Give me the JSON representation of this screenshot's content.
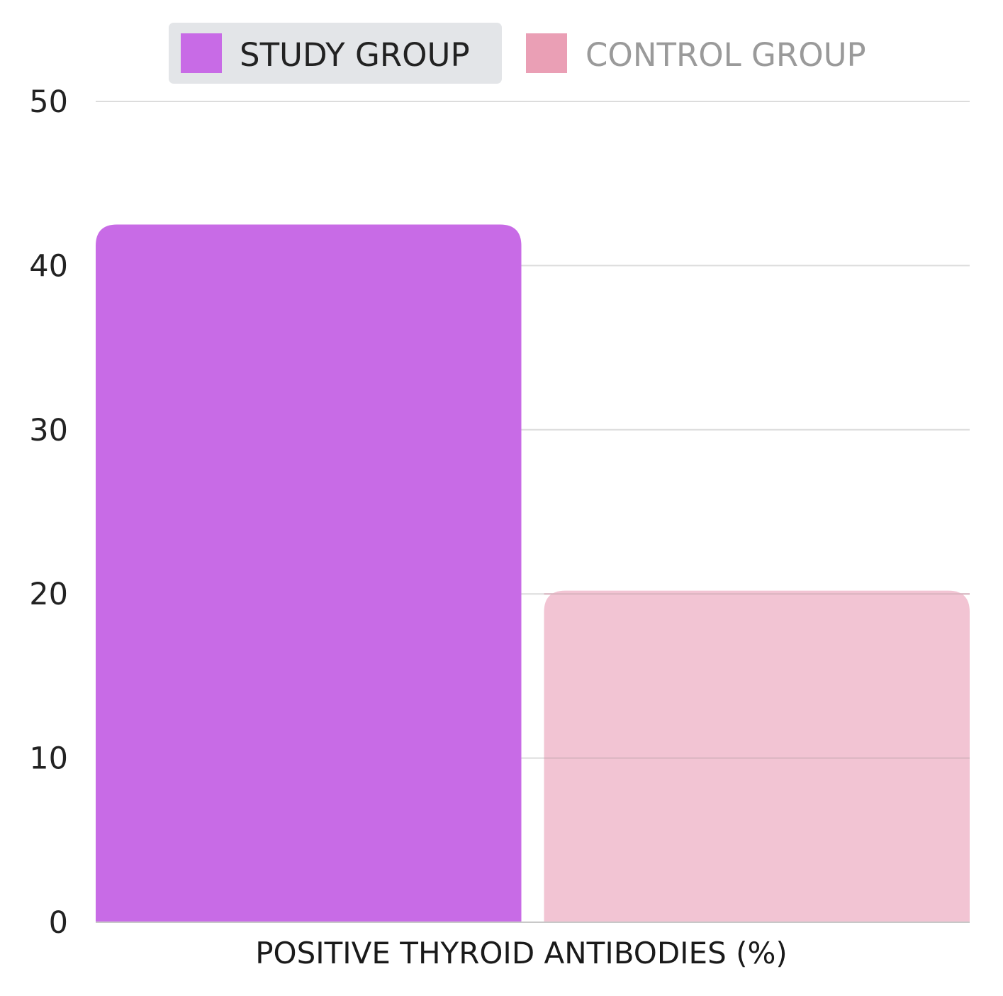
{
  "chart_data": {
    "type": "bar",
    "categories": [
      "POSITIVE THYROID ANTIBODIES (%)"
    ],
    "series": [
      {
        "name": "STUDY GROUP",
        "values": [
          42.5
        ],
        "color": "#c86be6",
        "active": true
      },
      {
        "name": "CONTROL GROUP",
        "values": [
          20.2
        ],
        "color": "#f2c4d3",
        "swatch_color": "#ea9fb5",
        "active": false
      }
    ],
    "xlabel": "",
    "ylabel": "",
    "ylim": [
      0,
      50
    ],
    "yticks": [
      0,
      10,
      20,
      30,
      40,
      50
    ],
    "grid": true,
    "legend_position": "top",
    "colors": {
      "grid": "#dcdcdc",
      "axis": "#c8c8c8",
      "legend_active_bg": "#e3e5e8",
      "legend_active_text": "#222222",
      "legend_inactive_text": "#9a9a9a"
    }
  }
}
